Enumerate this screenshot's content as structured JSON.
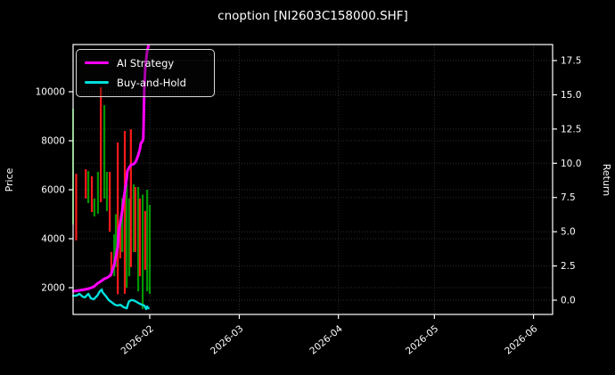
{
  "window": {
    "title": "cnoption [NI2603C158000.SHF]"
  },
  "chart_data": {
    "type": "candlestick+line",
    "title": "cnoption [NI2603C158000.SHF]",
    "x_axis": {
      "tick_labels": [
        "2026-02",
        "2026-03",
        "2026-04",
        "2026-05",
        "2026-06"
      ],
      "tick_day_offsets": [
        0,
        28,
        59,
        89,
        120
      ],
      "range_days": [
        -24,
        126
      ],
      "label_rotation_deg": -40
    },
    "left_axis": {
      "label": "Price",
      "ticks": [
        2000,
        4000,
        6000,
        8000,
        10000
      ],
      "range": [
        900,
        11930
      ]
    },
    "right_axis": {
      "label": "Return",
      "ticks": [
        0.0,
        2.5,
        5.0,
        7.5,
        10.0,
        12.5,
        15.0,
        17.5
      ],
      "range": [
        -1.05,
        18.65
      ]
    },
    "grid": {
      "visible": true,
      "style": "dotted",
      "color": "#2e2e2e"
    },
    "colors": {
      "up": "#009600",
      "down": "#fb1a1a",
      "ai_strategy": "#ff00ff",
      "buy_and_hold": "#00e0dc",
      "axis": "#ffffff",
      "background": "#000000"
    },
    "legend": {
      "position": "upper-left",
      "items": [
        "AI Strategy",
        "Buy-and-Hold"
      ]
    },
    "candles": [
      {
        "d": -24.0,
        "low": 4580,
        "high": 9310,
        "dir": "up"
      },
      {
        "d": -23.0,
        "low": 3930,
        "high": 6650,
        "dir": "down"
      },
      {
        "d": -20.0,
        "low": 5640,
        "high": 6840,
        "dir": "down"
      },
      {
        "d": -19.2,
        "low": 5455,
        "high": 6760,
        "dir": "up"
      },
      {
        "d": -18.1,
        "low": 5090,
        "high": 6550,
        "dir": "down"
      },
      {
        "d": -17.3,
        "low": 4910,
        "high": 5640,
        "dir": "up"
      },
      {
        "d": -16.2,
        "low": 5020,
        "high": 6730,
        "dir": "up"
      },
      {
        "d": -15.3,
        "low": 5490,
        "high": 10180,
        "dir": "down"
      },
      {
        "d": -14.2,
        "low": 5640,
        "high": 9450,
        "dir": "up"
      },
      {
        "d": -13.4,
        "low": 5130,
        "high": 6730,
        "dir": "up"
      },
      {
        "d": -12.5,
        "low": 4290,
        "high": 6730,
        "dir": "down"
      },
      {
        "d": -12.0,
        "low": 2470,
        "high": 3460,
        "dir": "down"
      },
      {
        "d": -11.1,
        "low": 2470,
        "high": 4180,
        "dir": "up"
      },
      {
        "d": -10.6,
        "low": 2840,
        "high": 5000,
        "dir": "up"
      },
      {
        "d": -10.0,
        "low": 1730,
        "high": 7930,
        "dir": "down"
      },
      {
        "d": -9.2,
        "low": 3200,
        "high": 4760,
        "dir": "down"
      },
      {
        "d": -8.6,
        "low": 3460,
        "high": 5640,
        "dir": "up"
      },
      {
        "d": -7.8,
        "low": 1750,
        "high": 8400,
        "dir": "down"
      },
      {
        "d": -7.2,
        "low": 2000,
        "high": 6220,
        "dir": "up"
      },
      {
        "d": -6.4,
        "low": 2470,
        "high": 5640,
        "dir": "up"
      },
      {
        "d": -5.9,
        "low": 2840,
        "high": 8470,
        "dir": "down"
      },
      {
        "d": -5.0,
        "low": 3460,
        "high": 6220,
        "dir": "up"
      },
      {
        "d": -4.5,
        "low": 3460,
        "high": 6110,
        "dir": "down"
      },
      {
        "d": -3.6,
        "low": 1855,
        "high": 6110,
        "dir": "up"
      },
      {
        "d": -3.1,
        "low": 2470,
        "high": 5640,
        "dir": "down"
      },
      {
        "d": -2.2,
        "low": 1130,
        "high": 5800,
        "dir": "up"
      },
      {
        "d": -1.4,
        "low": 2730,
        "high": 5130,
        "dir": "down"
      },
      {
        "d": -0.8,
        "low": 1855,
        "high": 6000,
        "dir": "up"
      },
      {
        "d": 0.0,
        "low": 1745,
        "high": 5380,
        "dir": "up"
      }
    ],
    "series": [
      {
        "name": "AI Strategy",
        "color": "#ff00ff",
        "axis": "right",
        "points": [
          [
            -24,
            0.65
          ],
          [
            -21.7,
            0.72
          ],
          [
            -20.3,
            0.78
          ],
          [
            -18.9,
            0.85
          ],
          [
            -17.5,
            0.98
          ],
          [
            -16.2,
            1.24
          ],
          [
            -15.3,
            1.37
          ],
          [
            -14.2,
            1.56
          ],
          [
            -13.4,
            1.63
          ],
          [
            -12.5,
            1.76
          ],
          [
            -12,
            1.95
          ],
          [
            -11.1,
            2.6
          ],
          [
            -10.6,
            3.2
          ],
          [
            -10,
            3.9
          ],
          [
            -9.7,
            5.1
          ],
          [
            -9.2,
            5.66
          ],
          [
            -8.6,
            6.5
          ],
          [
            -8.4,
            6.96
          ],
          [
            -7.8,
            7.94
          ],
          [
            -7.2,
            8.9
          ],
          [
            -7,
            9.43
          ],
          [
            -6.4,
            9.7
          ],
          [
            -5.8,
            9.89
          ],
          [
            -5,
            9.95
          ],
          [
            -4.5,
            10.08
          ],
          [
            -4.2,
            10.21
          ],
          [
            -3.6,
            10.6
          ],
          [
            -3.3,
            10.86
          ],
          [
            -3.1,
            11.0
          ],
          [
            -2.8,
            11.45
          ],
          [
            -2.2,
            11.64
          ],
          [
            -2,
            11.84
          ],
          [
            -1.7,
            15.4
          ],
          [
            -1.4,
            17.0
          ],
          [
            -0.8,
            18.2
          ],
          [
            -0.4,
            18.6
          ]
        ]
      },
      {
        "name": "Buy-and-Hold",
        "color": "#00e0dc",
        "axis": "right",
        "points": [
          [
            -24,
            0.33
          ],
          [
            -23,
            0.33
          ],
          [
            -22,
            0.46
          ],
          [
            -21,
            0.26
          ],
          [
            -20.3,
            0.2
          ],
          [
            -19.2,
            0.46
          ],
          [
            -18.4,
            0.13
          ],
          [
            -17.5,
            0.07
          ],
          [
            -16.4,
            0.33
          ],
          [
            -15.6,
            0.65
          ],
          [
            -15,
            0.78
          ],
          [
            -14.8,
            0.59
          ],
          [
            -13.6,
            0.26
          ],
          [
            -12.8,
            0.0
          ],
          [
            -12,
            -0.13
          ],
          [
            -10.9,
            -0.33
          ],
          [
            -10,
            -0.39
          ],
          [
            -9.2,
            -0.33
          ],
          [
            -8.1,
            -0.52
          ],
          [
            -7.2,
            -0.59
          ],
          [
            -6.7,
            -0.2
          ],
          [
            -6.4,
            -0.07
          ],
          [
            -5.8,
            0.0
          ],
          [
            -5.3,
            0.0
          ],
          [
            -4.5,
            -0.07
          ],
          [
            -3.6,
            -0.2
          ],
          [
            -2.5,
            -0.33
          ],
          [
            -1.7,
            -0.39
          ],
          [
            -1.1,
            -0.65
          ],
          [
            -0.8,
            -0.46
          ],
          [
            -0.4,
            -0.59
          ]
        ]
      }
    ]
  }
}
